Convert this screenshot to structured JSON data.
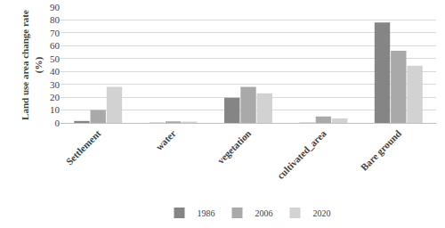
{
  "chart_data": {
    "type": "bar",
    "y_label": "Land use area change rate (%)",
    "categories": [
      "Settlement",
      "water",
      "vegetation",
      "cultivated_area",
      "Bare ground"
    ],
    "series": [
      {
        "name": "1986",
        "color": "#858585",
        "values": [
          1.5,
          0.2,
          19.5,
          0.2,
          78
        ]
      },
      {
        "name": "2006",
        "color": "#a9a9a9",
        "values": [
          10,
          1.2,
          28,
          5,
          56
        ]
      },
      {
        "name": "2020",
        "color": "#d2d2d2",
        "values": [
          28,
          1,
          23,
          3.5,
          44.5
        ]
      }
    ],
    "ylim": [
      0,
      90
    ],
    "yticks": [
      0,
      10,
      20,
      30,
      40,
      50,
      60,
      70,
      80,
      90
    ],
    "grid": true,
    "legend": "bottom"
  }
}
